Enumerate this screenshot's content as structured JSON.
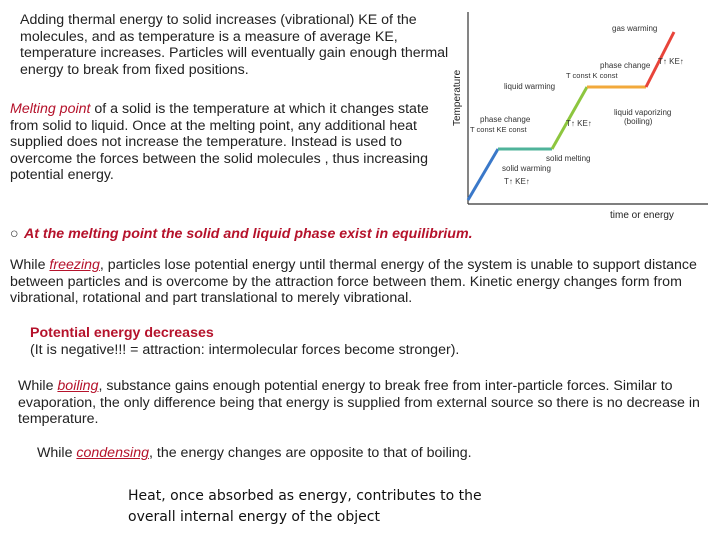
{
  "text": {
    "p1": "Adding thermal energy to solid increases (vibrational) KE of the molecules, and as temperature is a measure of average KE, temperature increases. Particles will eventually gain enough thermal energy to break from fixed positions.",
    "p2_term": "Melting point",
    "p2_rest": " of a solid is the temperature at which it changes state from solid to liquid. Once at the melting point, any additional heat supplied does not increase the temperature. Instead is used to overcome the forces between the solid molecules , thus increasing potential energy.",
    "bullet_marker": "○",
    "bullet": "At the melting point the solid and liquid phase exist in equilibrium.",
    "p3_pre": "While ",
    "p3_term": "freezing",
    "p3_rest": ", particles lose potential energy until thermal energy of the system is unable to support distance between particles and is overcome by the attraction force between them. Kinetic energy changes form from vibrational, rotational and part translational to merely vibrational.",
    "pe_title": "Potential energy decreases",
    "pe_note": " (It is negative!!! = attraction: intermolecular forces become stronger).",
    "p4_pre": "While ",
    "p4_term": "boiling",
    "p4_rest": ", substance gains enough potential energy to break free from inter-particle forces. Similar to evaporation, the only difference being that energy is supplied from external source so there is no decrease in temperature.",
    "p5_pre": "While ",
    "p5_term": "condensing",
    "p5_rest": ", the energy changes are opposite to that of boiling.",
    "p6": "Heat, once absorbed as energy, contributes to the overall internal energy of the object"
  },
  "chart_data": {
    "type": "line",
    "ylabel": "Temperature",
    "xlabel": "time or energy",
    "segments": [
      {
        "label": "solid warming",
        "color": "#3a78c9"
      },
      {
        "label": "solid melting",
        "color": "#4fb39a"
      },
      {
        "label": "liquid warming",
        "color": "#8dc63f"
      },
      {
        "label": "liquid vaporizing (boiling)",
        "color": "#f2a93b"
      },
      {
        "label": "gas warming",
        "color": "#e8443a"
      }
    ],
    "annotations": {
      "gas_warming": "gas warming",
      "liquid_warming": "liquid warming",
      "phase_change_1": "phase change",
      "phase_change_1_sub": "T const    KE const",
      "phase_change_2": "phase change",
      "phase_change_2_sub": "T const    K const",
      "liquid_vaporizing": "liquid vaporizing",
      "boiling": "(boiling)",
      "solid_melting": "solid melting",
      "solid_warming": "solid warming",
      "t_ke_up": "T↑  KE↑"
    }
  }
}
